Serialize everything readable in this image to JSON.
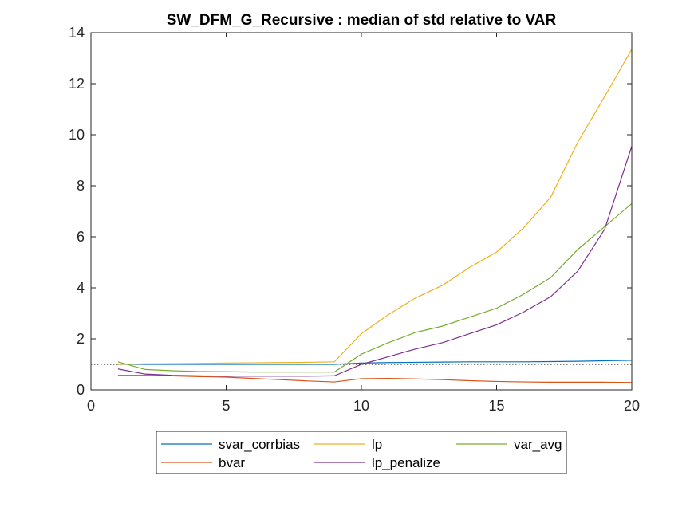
{
  "chart_data": {
    "type": "line",
    "title": "SW_DFM_G_Recursive : median of std relative to VAR",
    "xlabel": "",
    "ylabel": "",
    "xlim": [
      0,
      20
    ],
    "ylim": [
      0,
      14
    ],
    "xticks": [
      0,
      5,
      10,
      15,
      20
    ],
    "yticks": [
      0,
      2,
      4,
      6,
      8,
      10,
      12,
      14
    ],
    "grid": false,
    "legend_position": "bottom-outside",
    "reference_line": {
      "y": 1,
      "style": "dotted",
      "color": "#000000"
    },
    "x": [
      1,
      2,
      3,
      4,
      5,
      6,
      7,
      8,
      9,
      10,
      11,
      12,
      13,
      14,
      15,
      16,
      17,
      18,
      19,
      20
    ],
    "series": [
      {
        "name": "svar_corrbias",
        "color": "#0072BD",
        "values": [
          1.0,
          1.0,
          1.0,
          1.0,
          1.0,
          1.0,
          1.0,
          1.0,
          1.0,
          1.05,
          1.07,
          1.08,
          1.09,
          1.1,
          1.1,
          1.1,
          1.11,
          1.12,
          1.14,
          1.16
        ]
      },
      {
        "name": "lp",
        "color": "#EDB120",
        "values": [
          1.0,
          1.02,
          1.03,
          1.04,
          1.05,
          1.06,
          1.07,
          1.08,
          1.1,
          2.2,
          2.95,
          3.6,
          4.1,
          4.8,
          5.4,
          6.35,
          7.55,
          9.7,
          11.5,
          13.35
        ]
      },
      {
        "name": "var_avg",
        "color": "#77AC30",
        "values": [
          1.1,
          0.8,
          0.75,
          0.72,
          0.71,
          0.7,
          0.7,
          0.7,
          0.7,
          1.4,
          1.85,
          2.25,
          2.5,
          2.85,
          3.2,
          3.75,
          4.4,
          5.5,
          6.4,
          7.3
        ]
      },
      {
        "name": "bvar",
        "color": "#D95319",
        "values": [
          0.57,
          0.57,
          0.55,
          0.52,
          0.5,
          0.45,
          0.4,
          0.35,
          0.31,
          0.44,
          0.45,
          0.43,
          0.4,
          0.36,
          0.33,
          0.31,
          0.3,
          0.3,
          0.3,
          0.29
        ]
      },
      {
        "name": "lp_penalize",
        "color": "#7E2F8E",
        "values": [
          0.82,
          0.62,
          0.57,
          0.55,
          0.54,
          0.54,
          0.54,
          0.54,
          0.55,
          1.0,
          1.3,
          1.6,
          1.85,
          2.2,
          2.55,
          3.05,
          3.65,
          4.65,
          6.3,
          9.55
        ]
      }
    ],
    "legend_order": [
      "svar_corrbias",
      "lp",
      "var_avg",
      "bvar",
      "lp_penalize"
    ]
  }
}
